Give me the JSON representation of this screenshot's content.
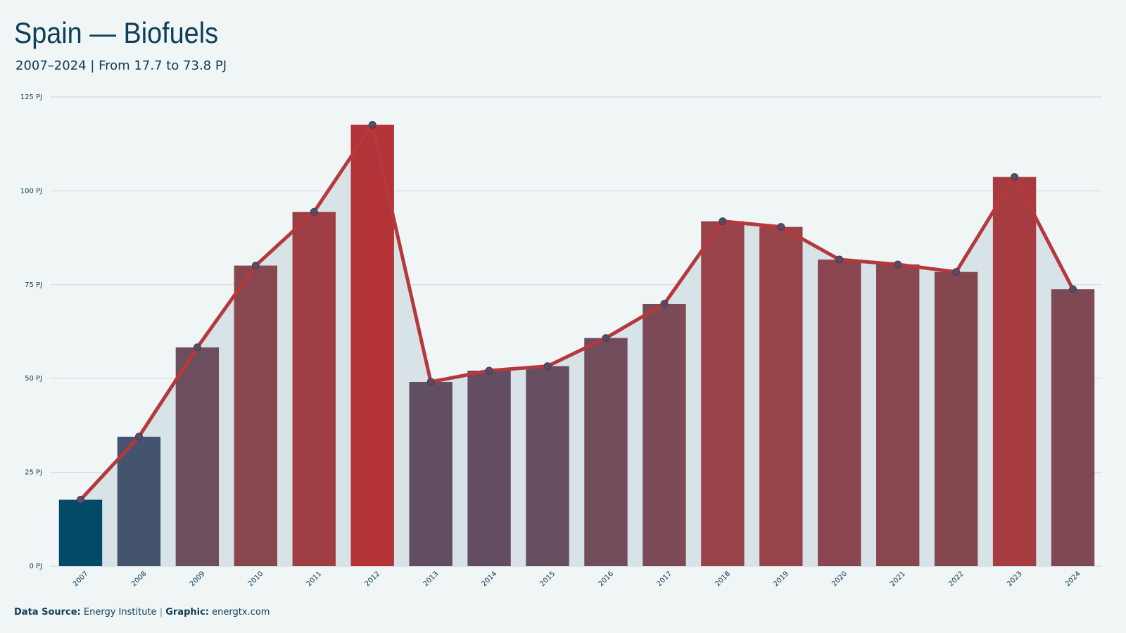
{
  "chart_data": {
    "type": "bar",
    "overlay": "line",
    "title": "Spain — Biofuels",
    "subtitle": "2007–2024 | From 17.7 to 73.8 PJ",
    "footer": {
      "source_label": "Data Source:",
      "source": "Energy Institute",
      "separator": "|",
      "graphic_label": "Graphic:",
      "graphic": "energtx.com"
    },
    "categories": [
      "2007",
      "2008",
      "2009",
      "2010",
      "2011",
      "2012",
      "2013",
      "2014",
      "2015",
      "2016",
      "2017",
      "2018",
      "2019",
      "2020",
      "2021",
      "2022",
      "2023",
      "2024"
    ],
    "values": [
      17.7,
      34.5,
      58.3,
      80.1,
      94.4,
      117.6,
      49.1,
      52.1,
      53.3,
      60.8,
      69.9,
      91.9,
      90.4,
      81.7,
      80.4,
      78.4,
      103.7,
      73.8
    ],
    "colors": [
      "#034a68",
      "#44546f",
      "#6d4e5e",
      "#88474f",
      "#9e3e44",
      "#b33337",
      "#614e62",
      "#634d60",
      "#664d60",
      "#714c5a",
      "#7c4a56",
      "#98434a",
      "#96444a",
      "#8a4650",
      "#88474f",
      "#85474f",
      "#a63c40",
      "#7f4954"
    ],
    "line_color": "#b5393c",
    "area_color": "#d7e3e6",
    "point_color": "#5a4a62",
    "ylim": [
      0,
      125
    ],
    "yticks": [
      {
        "value": 0,
        "label": "0 PJ"
      },
      {
        "value": 25,
        "label": "25 PJ"
      },
      {
        "value": 50,
        "label": "50 PJ"
      },
      {
        "value": 75,
        "label": "75 PJ"
      },
      {
        "value": 100,
        "label": "100 PJ"
      },
      {
        "value": 125,
        "label": "125 PJ"
      }
    ],
    "grid": true
  }
}
